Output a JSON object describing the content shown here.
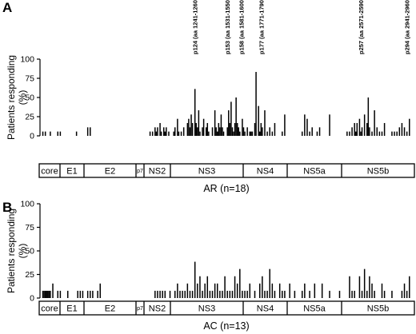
{
  "chart_data": [
    {
      "type": "bar",
      "panel": "A",
      "ylabel": "Patients responding (%)",
      "ylabel_lines": [
        "Patients responding",
        "(%)"
      ],
      "yticks": [
        0,
        25,
        50,
        75,
        100
      ],
      "ylim": [
        0,
        100
      ],
      "caption": "AR (n=18)",
      "regions": [
        "core",
        "E1",
        "E2",
        "p7",
        "NS2",
        "NS3",
        "NS4",
        "NS5a",
        "NS5b"
      ],
      "annotations": [
        {
          "peptide_index": 124,
          "label": "p124 (aa 1241-1260)"
        },
        {
          "peptide_index": 153,
          "label": "p153 (aa 1531-1550)"
        },
        {
          "peptide_index": 158,
          "label": "p158 (aa 1581-1600)"
        },
        {
          "peptide_index": 177,
          "label": "p177 (aa 1771-1790)"
        },
        {
          "peptide_index": 257,
          "label": "p257 (aa 2571-2590)"
        },
        {
          "peptide_index": 294,
          "label": "p294 (aa 2941-2960)"
        }
      ],
      "x": [
        2,
        4,
        8,
        14,
        16,
        29,
        38,
        40,
        88,
        90,
        92,
        93,
        94,
        96,
        97,
        99,
        100,
        101,
        103,
        107,
        108,
        110,
        111,
        113,
        115,
        118,
        119,
        120,
        121,
        122,
        124,
        125,
        126,
        127,
        128,
        130,
        131,
        133,
        134,
        135,
        138,
        140,
        141,
        142,
        143,
        144,
        145,
        146,
        147,
        150,
        151,
        152,
        153,
        154,
        155,
        156,
        157,
        158,
        159,
        160,
        162,
        163,
        164,
        166,
        168,
        169,
        170,
        172,
        173,
        175,
        176,
        177,
        178,
        180,
        182,
        184,
        186,
        188,
        194,
        196,
        210,
        212,
        214,
        216,
        218,
        222,
        224,
        232,
        246,
        248,
        250,
        252,
        253,
        254,
        256,
        257,
        258,
        260,
        262,
        263,
        264,
        266,
        268,
        270,
        272,
        274,
        276,
        282,
        284,
        286,
        288,
        290,
        292,
        294,
        296
      ],
      "values": [
        5.6,
        5.6,
        5.6,
        5.6,
        5.6,
        5.6,
        11.1,
        11.1,
        5.6,
        5.6,
        11.1,
        5.6,
        11.1,
        16.7,
        5.6,
        11.1,
        5.6,
        11.1,
        5.6,
        5.6,
        11.1,
        22.2,
        5.6,
        5.6,
        11.1,
        16.7,
        22.2,
        11.1,
        27.8,
        16.7,
        61.1,
        16.7,
        11.1,
        33.3,
        5.6,
        11.1,
        22.2,
        11.1,
        16.7,
        5.6,
        11.1,
        33.3,
        11.1,
        5.6,
        16.7,
        11.1,
        27.8,
        11.1,
        5.6,
        11.1,
        33.3,
        16.7,
        44.4,
        11.1,
        5.6,
        16.7,
        50.0,
        16.7,
        11.1,
        5.6,
        22.2,
        11.1,
        5.6,
        11.1,
        5.6,
        5.6,
        5.6,
        16.7,
        83.3,
        38.9,
        5.6,
        16.7,
        11.1,
        33.3,
        5.6,
        11.1,
        5.6,
        16.7,
        5.6,
        27.8,
        5.6,
        27.8,
        22.2,
        5.6,
        11.1,
        5.6,
        11.1,
        27.8,
        5.6,
        5.6,
        11.1,
        16.7,
        5.6,
        16.7,
        22.2,
        5.6,
        11.1,
        27.8,
        16.7,
        50.0,
        11.1,
        5.6,
        33.3,
        11.1,
        5.6,
        5.6,
        16.7,
        5.6,
        5.6,
        5.6,
        11.1,
        16.7,
        11.1,
        5.6,
        22.2
      ]
    },
    {
      "type": "bar",
      "panel": "B",
      "ylabel": "Patients responding (%)",
      "ylabel_lines": [
        "Patients responding",
        "(%)"
      ],
      "yticks": [
        0,
        25,
        50,
        75,
        100
      ],
      "ylim": [
        0,
        100
      ],
      "caption": "AC (n=13)",
      "regions": [
        "core",
        "E1",
        "E2",
        "p7",
        "NS2",
        "NS3",
        "NS4",
        "NS5a",
        "NS5b"
      ],
      "x": [
        2,
        3,
        4,
        5,
        6,
        7,
        8,
        10,
        14,
        16,
        22,
        30,
        32,
        34,
        38,
        40,
        42,
        46,
        48,
        92,
        94,
        96,
        98,
        100,
        104,
        108,
        110,
        112,
        114,
        116,
        118,
        120,
        122,
        124,
        126,
        128,
        130,
        132,
        134,
        136,
        138,
        140,
        142,
        144,
        146,
        148,
        150,
        152,
        154,
        156,
        158,
        160,
        162,
        164,
        166,
        168,
        172,
        176,
        178,
        180,
        182,
        184,
        186,
        188,
        192,
        194,
        196,
        200,
        204,
        210,
        212,
        216,
        220,
        226,
        232,
        240,
        248,
        250,
        252,
        256,
        258,
        260,
        262,
        264,
        266,
        268,
        274,
        276,
        282,
        290,
        292,
        294,
        296
      ],
      "values": [
        7.7,
        7.7,
        7.7,
        7.7,
        7.7,
        7.7,
        7.7,
        15.4,
        7.7,
        7.7,
        7.7,
        7.7,
        7.7,
        7.7,
        7.7,
        7.7,
        7.7,
        7.7,
        15.4,
        7.7,
        7.7,
        7.7,
        7.7,
        7.7,
        7.7,
        7.7,
        15.4,
        7.7,
        7.7,
        7.7,
        15.4,
        7.7,
        7.7,
        38.5,
        15.4,
        23.1,
        7.7,
        15.4,
        23.1,
        7.7,
        7.7,
        15.4,
        15.4,
        7.7,
        7.7,
        23.1,
        7.7,
        7.7,
        7.7,
        23.1,
        15.4,
        30.8,
        7.7,
        7.7,
        7.7,
        15.4,
        7.7,
        15.4,
        23.1,
        7.7,
        7.7,
        30.8,
        15.4,
        7.7,
        15.4,
        7.7,
        7.7,
        15.4,
        7.7,
        7.7,
        15.4,
        7.7,
        15.4,
        15.4,
        7.7,
        7.7,
        23.1,
        7.7,
        7.7,
        23.1,
        7.7,
        30.8,
        7.7,
        23.1,
        15.4,
        7.7,
        15.4,
        7.7,
        7.7,
        7.7,
        15.4,
        7.7,
        23.1
      ]
    }
  ]
}
